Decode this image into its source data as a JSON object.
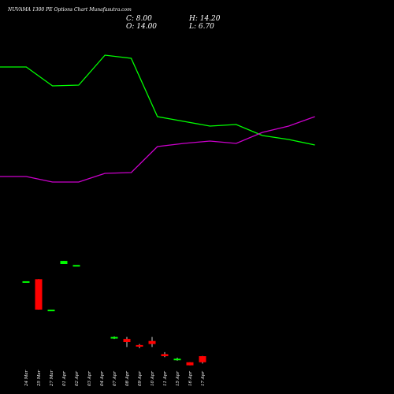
{
  "chart_data": {
    "type": "candlestick",
    "title": "NUVAMA 1300  PE Options Chart Munafasutra.com",
    "ohlc_summary": {
      "close": "C: 8.00",
      "high": "H: 14.20",
      "open": "O: 14.00",
      "low": "L: 6.70"
    },
    "categories": [
      "24 Mar",
      "25 Mar",
      "27 Mar",
      "01 Apr",
      "02 Apr",
      "03 Apr",
      "04 Apr",
      "07 Apr",
      "08 Apr",
      "09 Apr",
      "10 Apr",
      "11 Apr",
      "15 Apr",
      "16 Apr",
      "17 Apr"
    ],
    "candles": [
      {
        "date": "24 Mar",
        "open": 88.0,
        "close": 88.0,
        "high": 88.0,
        "low": 88.0
      },
      {
        "date": "25 Mar",
        "open": 90.0,
        "close": 60.0,
        "high": 90.0,
        "low": 60.0
      },
      {
        "date": "27 Mar",
        "open": 60.0,
        "close": 60.0,
        "high": 60.0,
        "low": 60.0
      },
      {
        "date": "01 Apr",
        "open": 105.0,
        "close": 108.0,
        "high": 108.0,
        "low": 105.0
      },
      {
        "date": "02 Apr",
        "open": 104.0,
        "close": 104.0,
        "high": 104.0,
        "low": 104.0
      },
      {
        "date": "03 Apr",
        "open": null,
        "close": null,
        "high": null,
        "low": null
      },
      {
        "date": "04 Apr",
        "open": null,
        "close": null,
        "high": null,
        "low": null
      },
      {
        "date": "07 Apr",
        "open": 32.0,
        "close": 33.0,
        "high": 33.5,
        "low": 31.0
      },
      {
        "date": "08 Apr",
        "open": 31.0,
        "close": 28.0,
        "high": 33.0,
        "low": 23.0
      },
      {
        "date": "09 Apr",
        "open": 25.0,
        "close": 24.0,
        "high": 26.0,
        "low": 22.0
      },
      {
        "date": "10 Apr",
        "open": 29.0,
        "close": 26.0,
        "high": 33.0,
        "low": 23.0
      },
      {
        "date": "11 Apr",
        "open": 16.0,
        "close": 14.0,
        "high": 18.0,
        "low": 13.0
      },
      {
        "date": "15 Apr",
        "open": 10.0,
        "close": 11.5,
        "high": 12.5,
        "low": 9.5
      },
      {
        "date": "16 Apr",
        "open": 8.0,
        "close": 5.0,
        "high": 8.0,
        "low": 5.0
      },
      {
        "date": "17 Apr",
        "open": 14.0,
        "close": 8.0,
        "high": 14.2,
        "low": 6.7
      }
    ],
    "price_ylim": [
      0,
      175
    ],
    "overlay_lines": [
      {
        "color": "#00ff00",
        "values": [
          85,
          85,
          109,
          108,
          70,
          74,
          148,
          154,
          160,
          158,
          172,
          177,
          184
        ]
      },
      {
        "color": "#cc00cc",
        "values": [
          224,
          224,
          231,
          231,
          220,
          219,
          186,
          182,
          179,
          182,
          168,
          160,
          148
        ]
      }
    ],
    "overlay_ylim": [
      0,
      500
    ],
    "colors": {
      "up": "#00ff00",
      "down": "#ff0000",
      "doji": "#00ff00",
      "background": "#000000",
      "text": "#ffffff"
    }
  }
}
